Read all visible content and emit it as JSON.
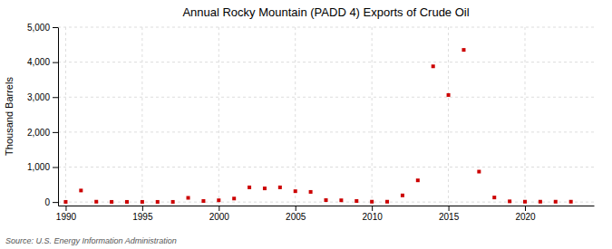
{
  "chart_data": {
    "type": "scatter",
    "title": "Annual Rocky Mountain (PADD 4) Exports of Crude Oil",
    "ylabel": "Thousand Barrels",
    "annotations": [
      "Source: U.S. Energy Information Administration"
    ],
    "x": [
      1990,
      1991,
      1992,
      1993,
      1994,
      1995,
      1996,
      1997,
      1998,
      1999,
      2000,
      2001,
      2002,
      2003,
      2004,
      2005,
      2006,
      2007,
      2008,
      2009,
      2010,
      2011,
      2012,
      2013,
      2014,
      2015,
      2016,
      2017,
      2018,
      2019,
      2020,
      2021,
      2022,
      2023
    ],
    "values": [
      5,
      330,
      10,
      5,
      5,
      5,
      5,
      5,
      120,
      30,
      50,
      100,
      420,
      390,
      420,
      310,
      290,
      55,
      50,
      30,
      10,
      10,
      190,
      620,
      3880,
      3060,
      4350,
      870,
      130,
      20,
      10,
      10,
      10,
      10
    ],
    "color": "#cc0000",
    "marker": "square",
    "xlim": [
      1989.5,
      2024.5
    ],
    "xticks": [
      1990,
      1995,
      2000,
      2005,
      2010,
      2015,
      2020
    ],
    "ylim": [
      -100,
      5000
    ],
    "yticks": [
      0,
      {
        "value": 1000,
        "label": "1,000"
      },
      {
        "value": 2000,
        "label": "2,000"
      },
      {
        "value": 3000,
        "label": "3,000"
      },
      {
        "value": 4000,
        "label": "4,000"
      },
      {
        "value": 5000,
        "label": "5,000"
      }
    ],
    "grid": true
  }
}
